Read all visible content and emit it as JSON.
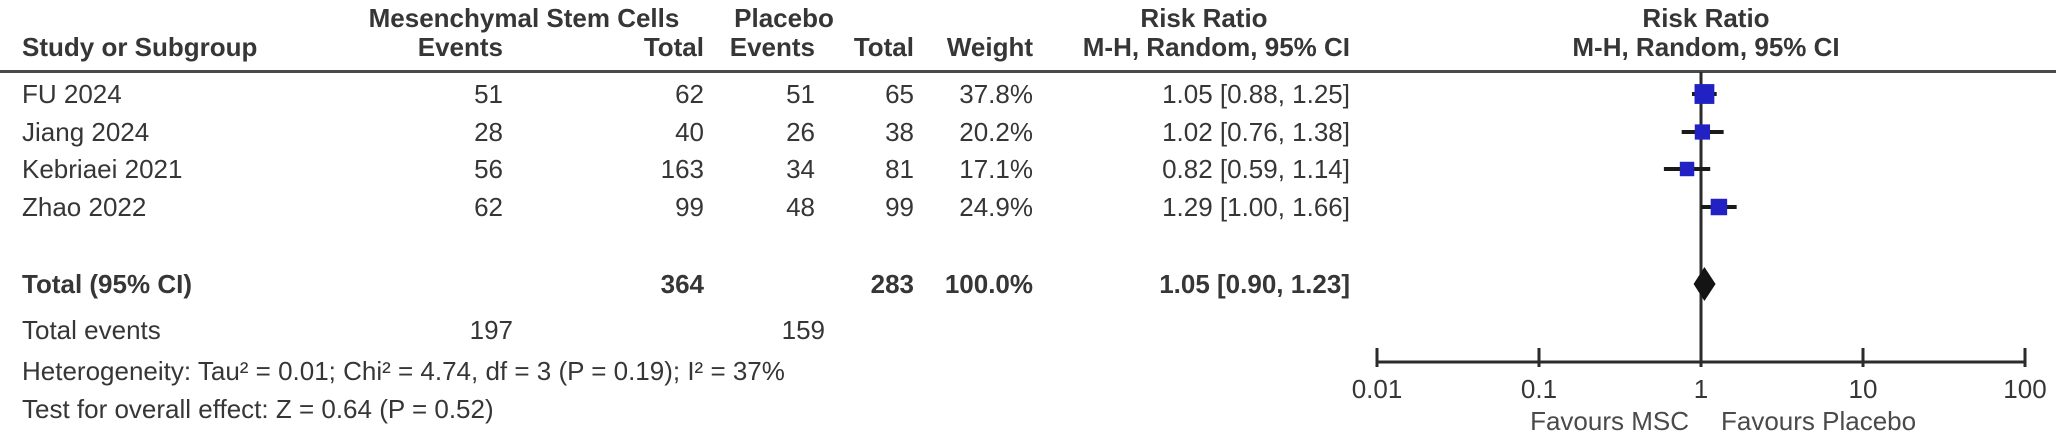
{
  "table": {
    "group_headers": {
      "treatment": "Mesenchymal Stem Cells",
      "control": "Placebo",
      "risk_ratio_text": "Risk Ratio",
      "risk_ratio_plot": "Risk Ratio"
    },
    "columns": {
      "study": "Study or Subgroup",
      "treatment_events": "Events",
      "treatment_total": "Total",
      "control_events": "Events",
      "control_total": "Total",
      "weight": "Weight",
      "effect_text": "M-H, Random, 95% CI",
      "effect_plot": "M-H, Random, 95% CI"
    },
    "rows": [
      {
        "study": "FU 2024",
        "ev1": "51",
        "tot1": "62",
        "ev2": "51",
        "tot2": "65",
        "weight": "37.8%",
        "ci": "1.05 [0.88, 1.25]"
      },
      {
        "study": "Jiang 2024",
        "ev1": "28",
        "tot1": "40",
        "ev2": "26",
        "tot2": "38",
        "weight": "20.2%",
        "ci": "1.02 [0.76, 1.38]"
      },
      {
        "study": "Kebriaei 2021",
        "ev1": "56",
        "tot1": "163",
        "ev2": "34",
        "tot2": "81",
        "weight": "17.1%",
        "ci": "0.82 [0.59, 1.14]"
      },
      {
        "study": "Zhao 2022",
        "ev1": "62",
        "tot1": "99",
        "ev2": "48",
        "tot2": "99",
        "weight": "24.9%",
        "ci": "1.29 [1.00, 1.66]"
      }
    ],
    "total_row": {
      "label": "Total (95% CI)",
      "tot1": "364",
      "tot2": "283",
      "weight": "100.0%",
      "ci": "1.05 [0.90, 1.23]"
    },
    "total_events_row": {
      "label": "Total events",
      "ev1": "197",
      "ev2": "159"
    },
    "heterogeneity": "Heterogeneity: Tau² = 0.01; Chi² = 4.74, df = 3 (P = 0.19); I² = 37%",
    "overall_effect": "Test for overall effect: Z = 0.64 (P = 0.52)"
  },
  "chart_data": {
    "type": "scatter",
    "subtype": "forest-plot",
    "title": "Risk Ratio",
    "method_label": "M-H, Random, 95% CI",
    "x_scale": "log",
    "x_ticks": [
      0.01,
      0.1,
      1,
      10,
      100
    ],
    "x_tick_labels": [
      "0.01",
      "0.1",
      "1",
      "10",
      "100"
    ],
    "xlim": [
      0.01,
      100
    ],
    "null_line": 1,
    "favours_left": "Favours MSC",
    "favours_right": "Favours Placebo",
    "studies": [
      {
        "name": "FU 2024",
        "rr": 1.05,
        "ci_low": 0.88,
        "ci_high": 1.25,
        "weight_pct": 37.8
      },
      {
        "name": "Jiang 2024",
        "rr": 1.02,
        "ci_low": 0.76,
        "ci_high": 1.38,
        "weight_pct": 20.2
      },
      {
        "name": "Kebriaei 2021",
        "rr": 0.82,
        "ci_low": 0.59,
        "ci_high": 1.14,
        "weight_pct": 17.1
      },
      {
        "name": "Zhao 2022",
        "rr": 1.29,
        "ci_low": 1.0,
        "ci_high": 1.66,
        "weight_pct": 24.9
      }
    ],
    "total": {
      "name": "Total (95% CI)",
      "rr": 1.05,
      "ci_low": 0.9,
      "ci_high": 1.23,
      "weight_pct": 100.0
    },
    "marker_color": "#2121C4",
    "diamond_color": "#141414",
    "line_color": "#2b2b2b"
  }
}
